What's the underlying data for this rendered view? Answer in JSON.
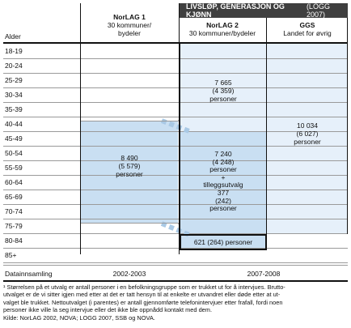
{
  "header": {
    "alder": "Alder",
    "norlag1": {
      "title": "NorLAG 1",
      "sub1": "30 kommuner/",
      "sub2": "bydeler"
    },
    "logg": {
      "title": "LIVSLØP, GENERASJON OG KJØNN",
      "suffix": "(LOGG 2007)"
    },
    "norlag2": {
      "title": "NorLAG 2",
      "sub": "30 kommuner/bydeler"
    },
    "ggs": {
      "title": "GGS",
      "sub": "Landet for øvrig"
    }
  },
  "ages": [
    "18-19",
    "20-24",
    "25-29",
    "30-34",
    "35-39",
    "40-44",
    "45-49",
    "50-54",
    "55-59",
    "60-64",
    "65-69",
    "70-74",
    "75-79",
    "80-84",
    "85+"
  ],
  "blocks": {
    "norlag1": {
      "n": "8 490",
      "net": "(5 579)",
      "unit": "personer"
    },
    "norlag2_young": {
      "n": "7 665",
      "net": "(4 359)",
      "unit": "personer"
    },
    "norlag2_old": {
      "n": "7 240",
      "net": "(4 248)",
      "unit": "personer",
      "plus": "+",
      "extra1": "tilleggsutvalg",
      "extra_n": "377",
      "extra_net": "(242)",
      "extra_unit": "personer"
    },
    "norlag2_80": {
      "text": "621 (264) personer"
    },
    "ggs": {
      "n": "10 034",
      "net": "(6 027)",
      "unit": "personer"
    }
  },
  "footer_row": {
    "label": "Datainnsamling",
    "norlag1": "2002-2003",
    "logg": "2007-2008"
  },
  "notes": {
    "line1": "¹ Størrelsen på et utvalg er antall personer i en befolkningsgruppe som er trukket ut for å intervjues. Brutto-",
    "line2": "utvalget er de vi sitter igjen med etter at det er tatt hensyn til at enkelte er utvandret eller døde etter at ut-",
    "line3": "valget ble trukket. Nettoutvalget (i parentes) er antall gjennomførte telefonintervjuer etter frafall, fordi noen",
    "line4": "personer ikke ville la seg intervjue eller det ikke ble oppnådd kontakt med dem.",
    "source": "Kilde: NorLAG 2002, NOVA; LOGG 2007, SSB og NOVA."
  },
  "colors": {
    "dark_header": "#3f3f3f",
    "light_blue": "#e6f0fa",
    "mid_blue": "#c9dff2",
    "border": "#111111"
  }
}
